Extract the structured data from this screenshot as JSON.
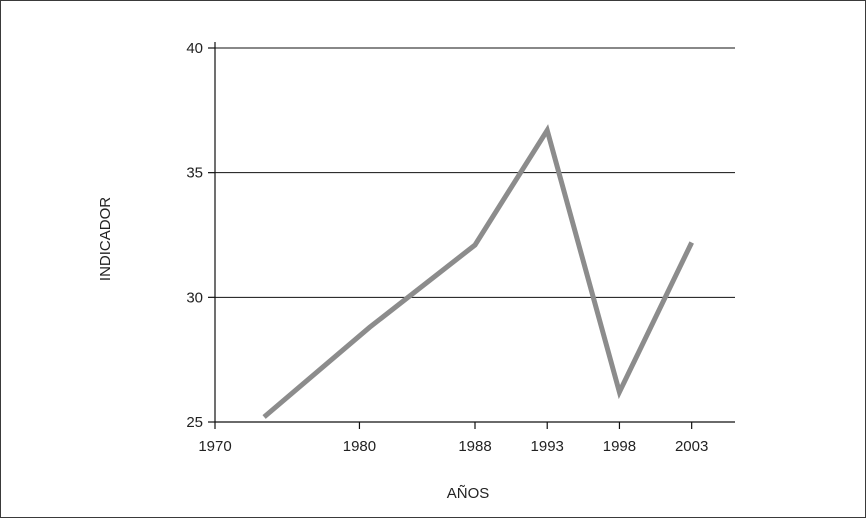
{
  "chart_data": {
    "type": "line",
    "title": "",
    "xlabel": "AÑOS",
    "ylabel": "INDICADOR",
    "xlim": [
      1970,
      2006
    ],
    "ylim": [
      25,
      40
    ],
    "x_ticks": [
      1970,
      1980,
      1988,
      1993,
      1998,
      2003
    ],
    "x_tick_labels": [
      "1970",
      "1980",
      "1988",
      "1993",
      "1998",
      "2003"
    ],
    "y_ticks": [
      25,
      30,
      35,
      40
    ],
    "y_tick_labels": [
      "25",
      "30",
      "35",
      "40"
    ],
    "grid": "horizontal",
    "legend": "none",
    "series": [
      {
        "color": "#8c8c8c",
        "x": [
          1973.4,
          1980.7,
          1988,
          1993,
          1998,
          2003
        ],
        "y": [
          25.2,
          28.8,
          32.1,
          36.7,
          26.2,
          32.2
        ]
      }
    ]
  },
  "colors": {
    "line": "#8c8c8c",
    "axis": "#111111",
    "grid": "#111111",
    "frame": "#3a3a3a"
  }
}
